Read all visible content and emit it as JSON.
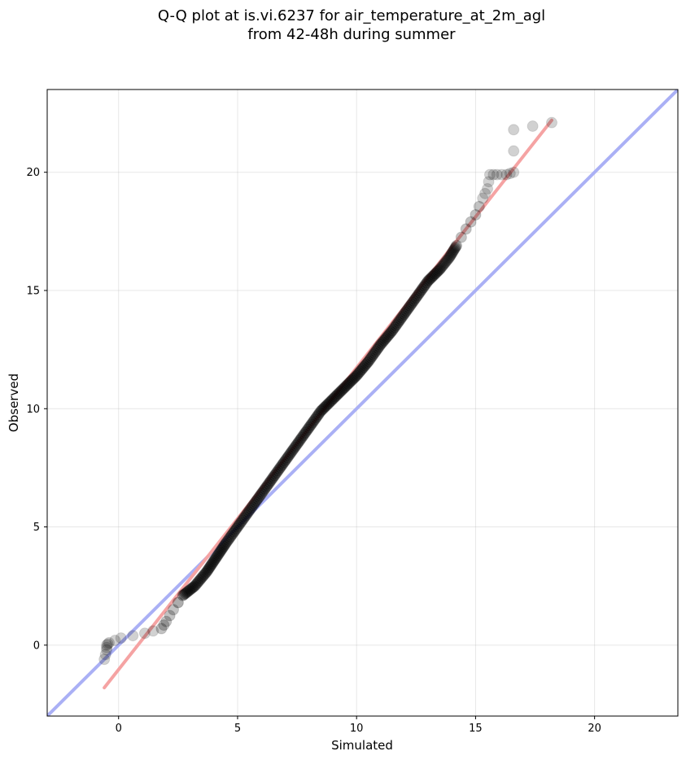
{
  "chart_data": {
    "type": "scatter",
    "title_lines": [
      "Q-Q plot at is.vi.6237 for air_temperature_at_2m_agl",
      "from 42-48h during summer"
    ],
    "xlabel": "Simulated",
    "ylabel": "Observed",
    "xlim": [
      -3,
      23.5
    ],
    "ylim": [
      -3,
      23.5
    ],
    "xticks": [
      0,
      5,
      10,
      15,
      20
    ],
    "yticks": [
      0,
      5,
      10,
      15,
      20
    ],
    "grid": true,
    "colors": {
      "points": "#000000",
      "identity_line": "#aab0f5",
      "fit_line": "#f5a3a3",
      "fit_overlay": "#8b0000"
    },
    "identity_line": {
      "x": [
        -3,
        23.5
      ],
      "y": [
        -3,
        23.5
      ]
    },
    "fit_line": {
      "x": [
        -0.6,
        18.2
      ],
      "y": [
        -1.8,
        22.2
      ]
    },
    "qq_anchor_points": [
      [
        -0.6,
        -0.6
      ],
      [
        -0.5,
        -0.2
      ],
      [
        -0.5,
        0.0
      ],
      [
        -0.4,
        0.1
      ],
      [
        0.1,
        0.3
      ],
      [
        1.1,
        0.5
      ],
      [
        1.8,
        0.7
      ],
      [
        2.0,
        1.0
      ],
      [
        2.3,
        1.5
      ],
      [
        2.7,
        2.1
      ],
      [
        3.2,
        2.5
      ],
      [
        3.7,
        3.1
      ],
      [
        4.1,
        3.7
      ],
      [
        4.5,
        4.3
      ],
      [
        5.0,
        5.0
      ],
      [
        5.5,
        5.7
      ],
      [
        6.0,
        6.4
      ],
      [
        6.5,
        7.1
      ],
      [
        7.0,
        7.8
      ],
      [
        7.5,
        8.5
      ],
      [
        8.0,
        9.2
      ],
      [
        8.5,
        9.9
      ],
      [
        9.0,
        10.4
      ],
      [
        9.5,
        10.9
      ],
      [
        10.0,
        11.4
      ],
      [
        10.5,
        12.0
      ],
      [
        11.0,
        12.7
      ],
      [
        11.5,
        13.3
      ],
      [
        12.0,
        14.0
      ],
      [
        12.5,
        14.7
      ],
      [
        13.0,
        15.4
      ],
      [
        13.5,
        15.9
      ],
      [
        13.9,
        16.4
      ],
      [
        14.2,
        16.9
      ],
      [
        14.6,
        17.6
      ],
      [
        15.0,
        18.2
      ],
      [
        15.3,
        18.9
      ],
      [
        15.5,
        19.3
      ],
      [
        15.6,
        19.9
      ],
      [
        15.9,
        19.9
      ],
      [
        16.3,
        19.9
      ],
      [
        16.6,
        20.0
      ],
      [
        16.6,
        21.8
      ],
      [
        18.2,
        22.1
      ]
    ]
  }
}
